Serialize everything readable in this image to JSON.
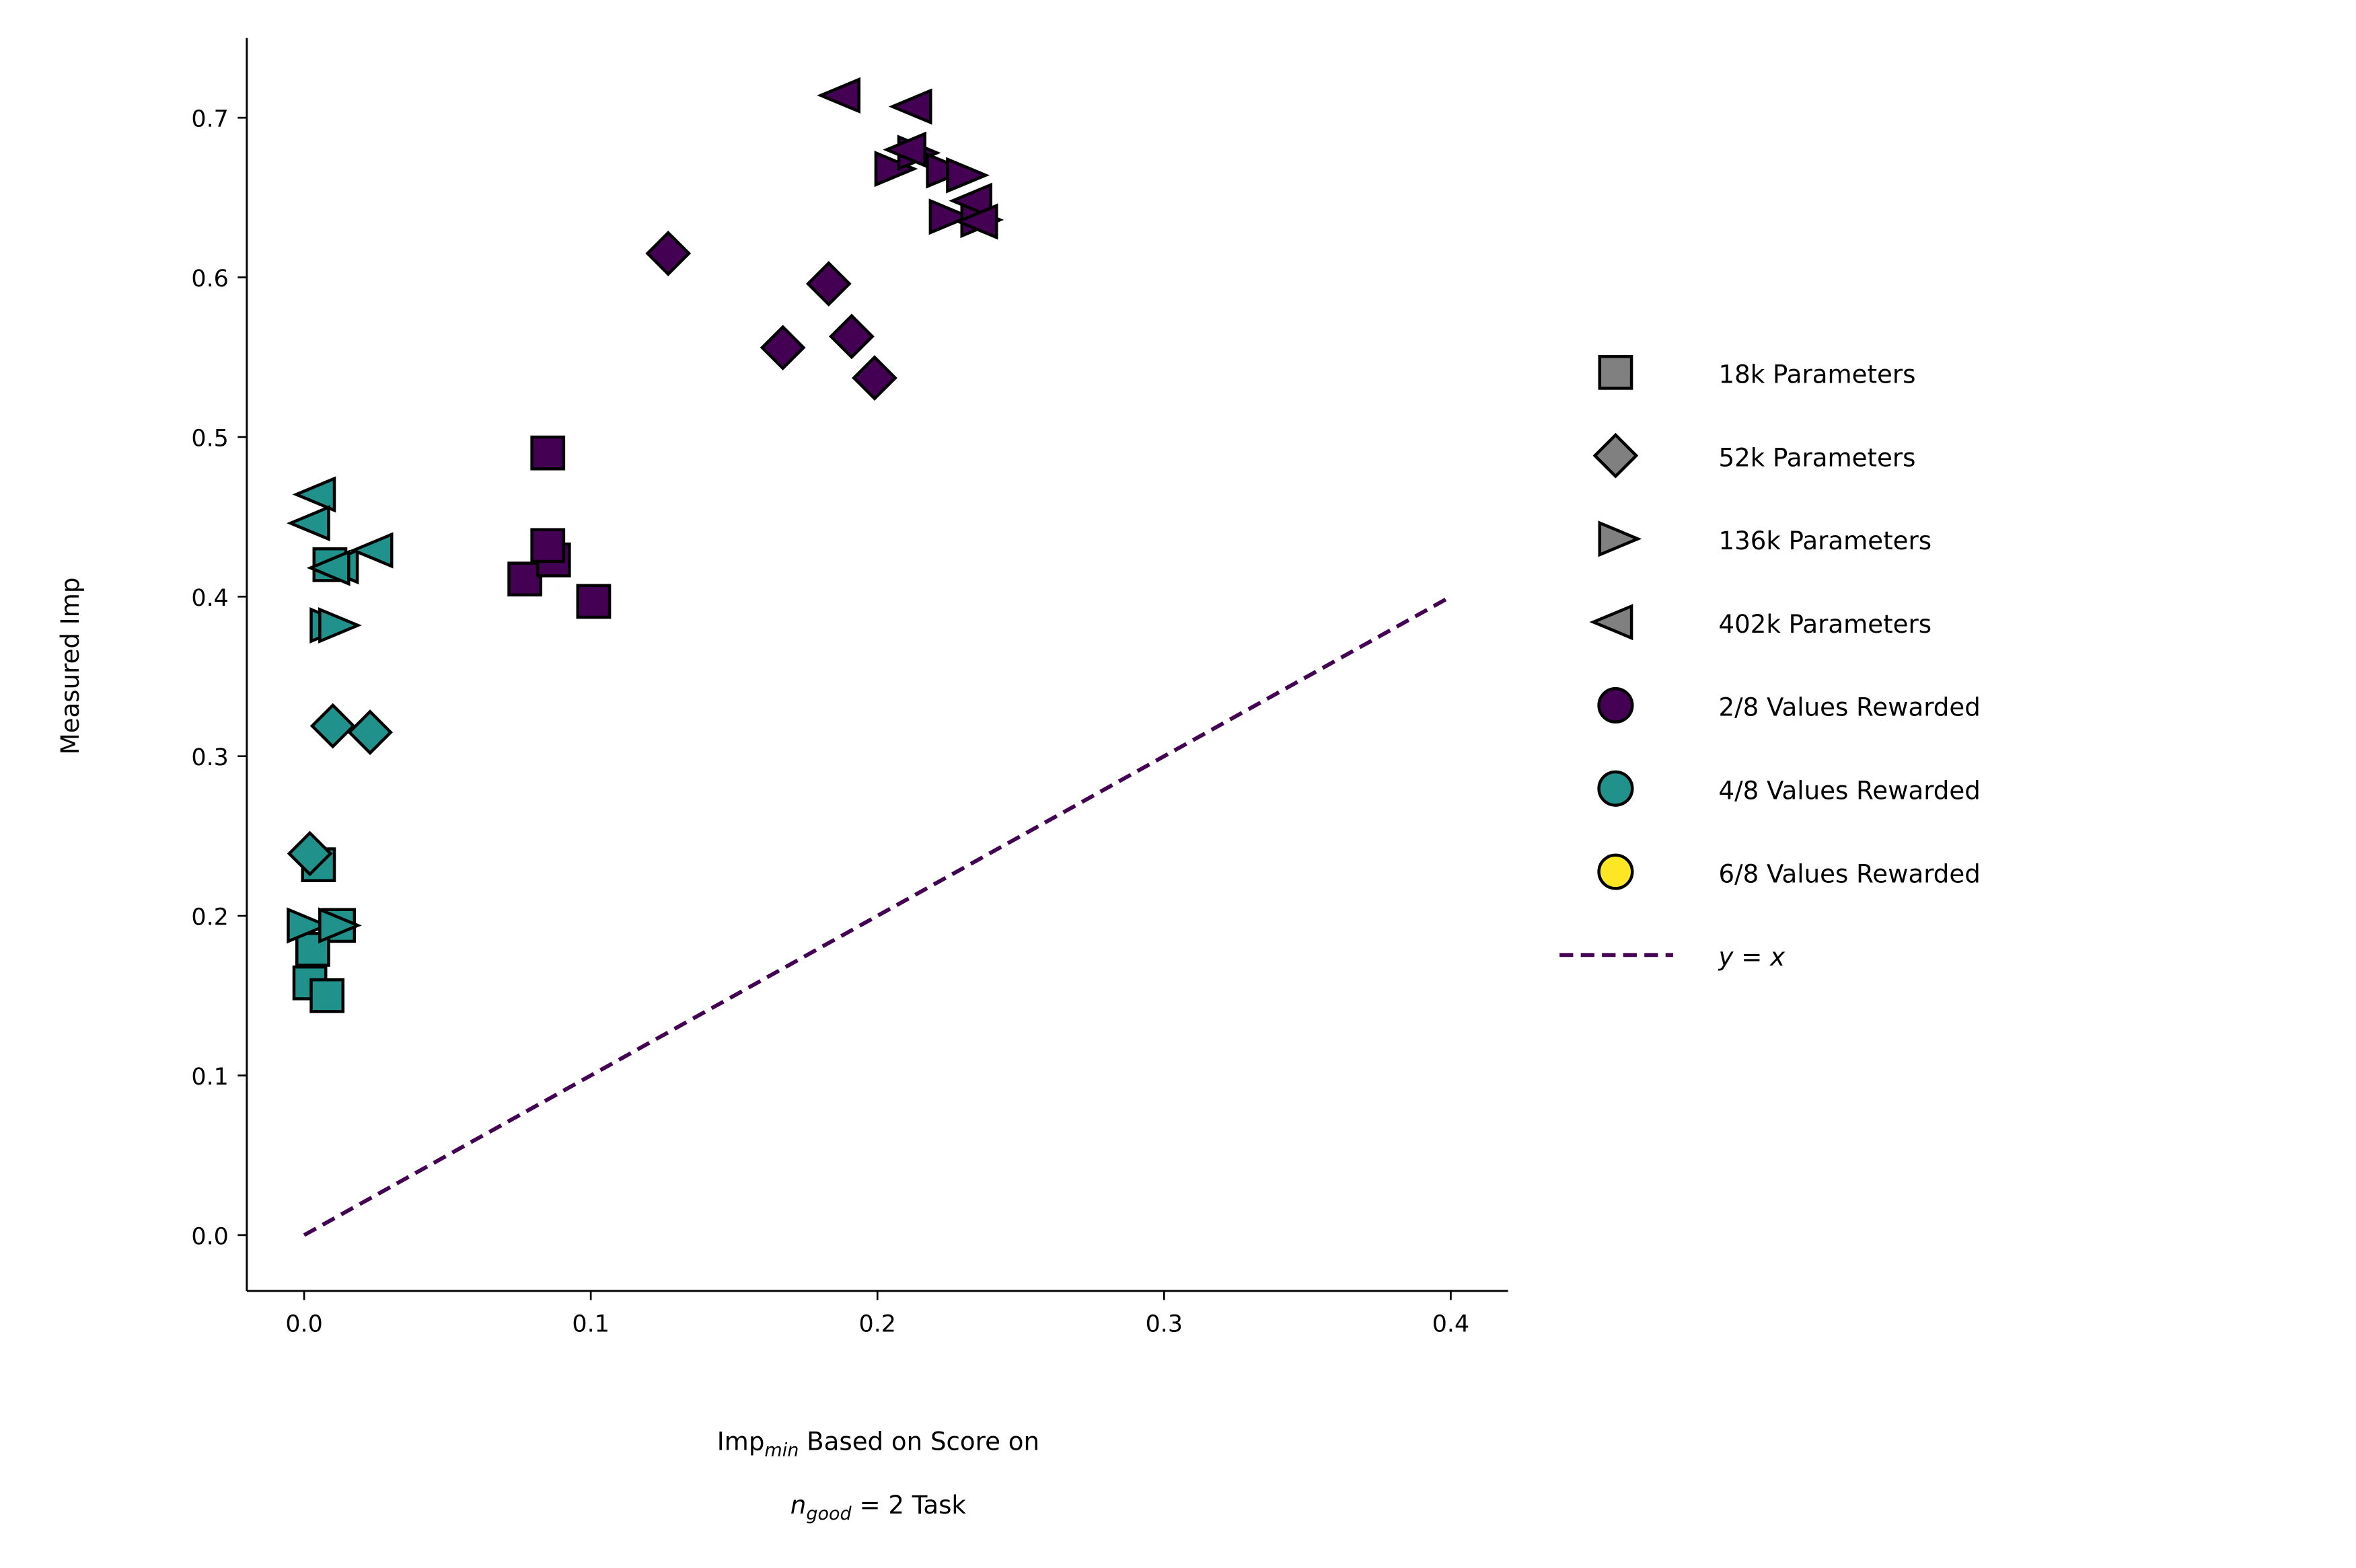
{
  "chart_data": {
    "type": "scatter",
    "xlabel_main": "Imp",
    "xlabel_sub": "min",
    "xlabel_rest": " Based on Score on",
    "xlabel_line2_var": "n",
    "xlabel_line2_sub": "good",
    "xlabel_line2_rest": " = 2 Task",
    "ylabel": "Measured Imp",
    "xlim": [
      -0.02,
      0.42
    ],
    "ylim": [
      -0.035,
      0.75
    ],
    "xticks": [
      "0.0",
      "0.1",
      "0.2",
      "0.3",
      "0.4"
    ],
    "yticks": [
      "0.0",
      "0.1",
      "0.2",
      "0.3",
      "0.4",
      "0.5",
      "0.6",
      "0.7"
    ],
    "grid": false,
    "legend_placement": "outside-right",
    "colors": {
      "2/8": "#440154",
      "4/8": "#21918c",
      "6/8": "#fde725",
      "neutral": "#808080"
    },
    "legend": [
      {
        "label": "18k Parameters",
        "marker": "square"
      },
      {
        "label": "52k Parameters",
        "marker": "diamond"
      },
      {
        "label": "136k Parameters",
        "marker": "triangle-right"
      },
      {
        "label": "402k Parameters",
        "marker": "triangle-left"
      },
      {
        "label": "2/8 Values Rewarded",
        "marker": "circle",
        "color": "#440154"
      },
      {
        "label": "4/8 Values Rewarded",
        "marker": "circle",
        "color": "#21918c"
      },
      {
        "label": "6/8 Values Rewarded",
        "marker": "circle",
        "color": "#fde725"
      },
      {
        "label": "y = x",
        "marker": "dashed-line",
        "color": "#440154"
      }
    ],
    "reference_line": {
      "label": "y = x",
      "x": [
        0,
        0.4
      ],
      "y": [
        0,
        0.4
      ],
      "color": "#440154"
    },
    "series": [
      {
        "params": "18k",
        "rewarded": "2/8",
        "marker": "square",
        "points": [
          [
            0.085,
            0.49
          ],
          [
            0.077,
            0.411
          ],
          [
            0.087,
            0.423
          ],
          [
            0.085,
            0.432
          ],
          [
            0.101,
            0.397
          ]
        ]
      },
      {
        "params": "52k",
        "rewarded": "2/8",
        "marker": "diamond",
        "points": [
          [
            0.127,
            0.615
          ],
          [
            0.183,
            0.596
          ],
          [
            0.167,
            0.556
          ],
          [
            0.191,
            0.563
          ],
          [
            0.199,
            0.537
          ]
        ]
      },
      {
        "params": "136k",
        "rewarded": "2/8",
        "marker": "triangle-right",
        "points": [
          [
            0.205,
            0.668
          ],
          [
            0.213,
            0.678
          ],
          [
            0.223,
            0.667
          ],
          [
            0.23,
            0.664
          ],
          [
            0.224,
            0.638
          ],
          [
            0.235,
            0.636
          ]
        ]
      },
      {
        "params": "402k",
        "rewarded": "2/8",
        "marker": "triangle-left",
        "points": [
          [
            0.188,
            0.714
          ],
          [
            0.213,
            0.707
          ],
          [
            0.211,
            0.68
          ],
          [
            0.234,
            0.648
          ],
          [
            0.236,
            0.635
          ]
        ]
      },
      {
        "params": "18k",
        "rewarded": "4/8",
        "marker": "square",
        "points": [
          [
            0.009,
            0.42
          ],
          [
            0.005,
            0.232
          ],
          [
            0.012,
            0.194
          ],
          [
            0.003,
            0.179
          ],
          [
            0.002,
            0.158
          ],
          [
            0.008,
            0.15
          ]
        ]
      },
      {
        "params": "52k",
        "rewarded": "4/8",
        "marker": "diamond",
        "points": [
          [
            0.01,
            0.319
          ],
          [
            0.023,
            0.315
          ],
          [
            0.002,
            0.239
          ]
        ]
      },
      {
        "params": "136k",
        "rewarded": "4/8",
        "marker": "triangle-right",
        "points": [
          [
            0.008,
            0.382
          ],
          [
            0.011,
            0.382
          ],
          [
            0.0,
            0.194
          ],
          [
            0.011,
            0.194
          ]
        ]
      },
      {
        "params": "402k",
        "rewarded": "4/8",
        "marker": "triangle-left",
        "points": [
          [
            0.005,
            0.464
          ],
          [
            0.003,
            0.446
          ],
          [
            0.013,
            0.419
          ],
          [
            0.025,
            0.429
          ],
          [
            0.01,
            0.418
          ]
        ]
      }
    ]
  }
}
